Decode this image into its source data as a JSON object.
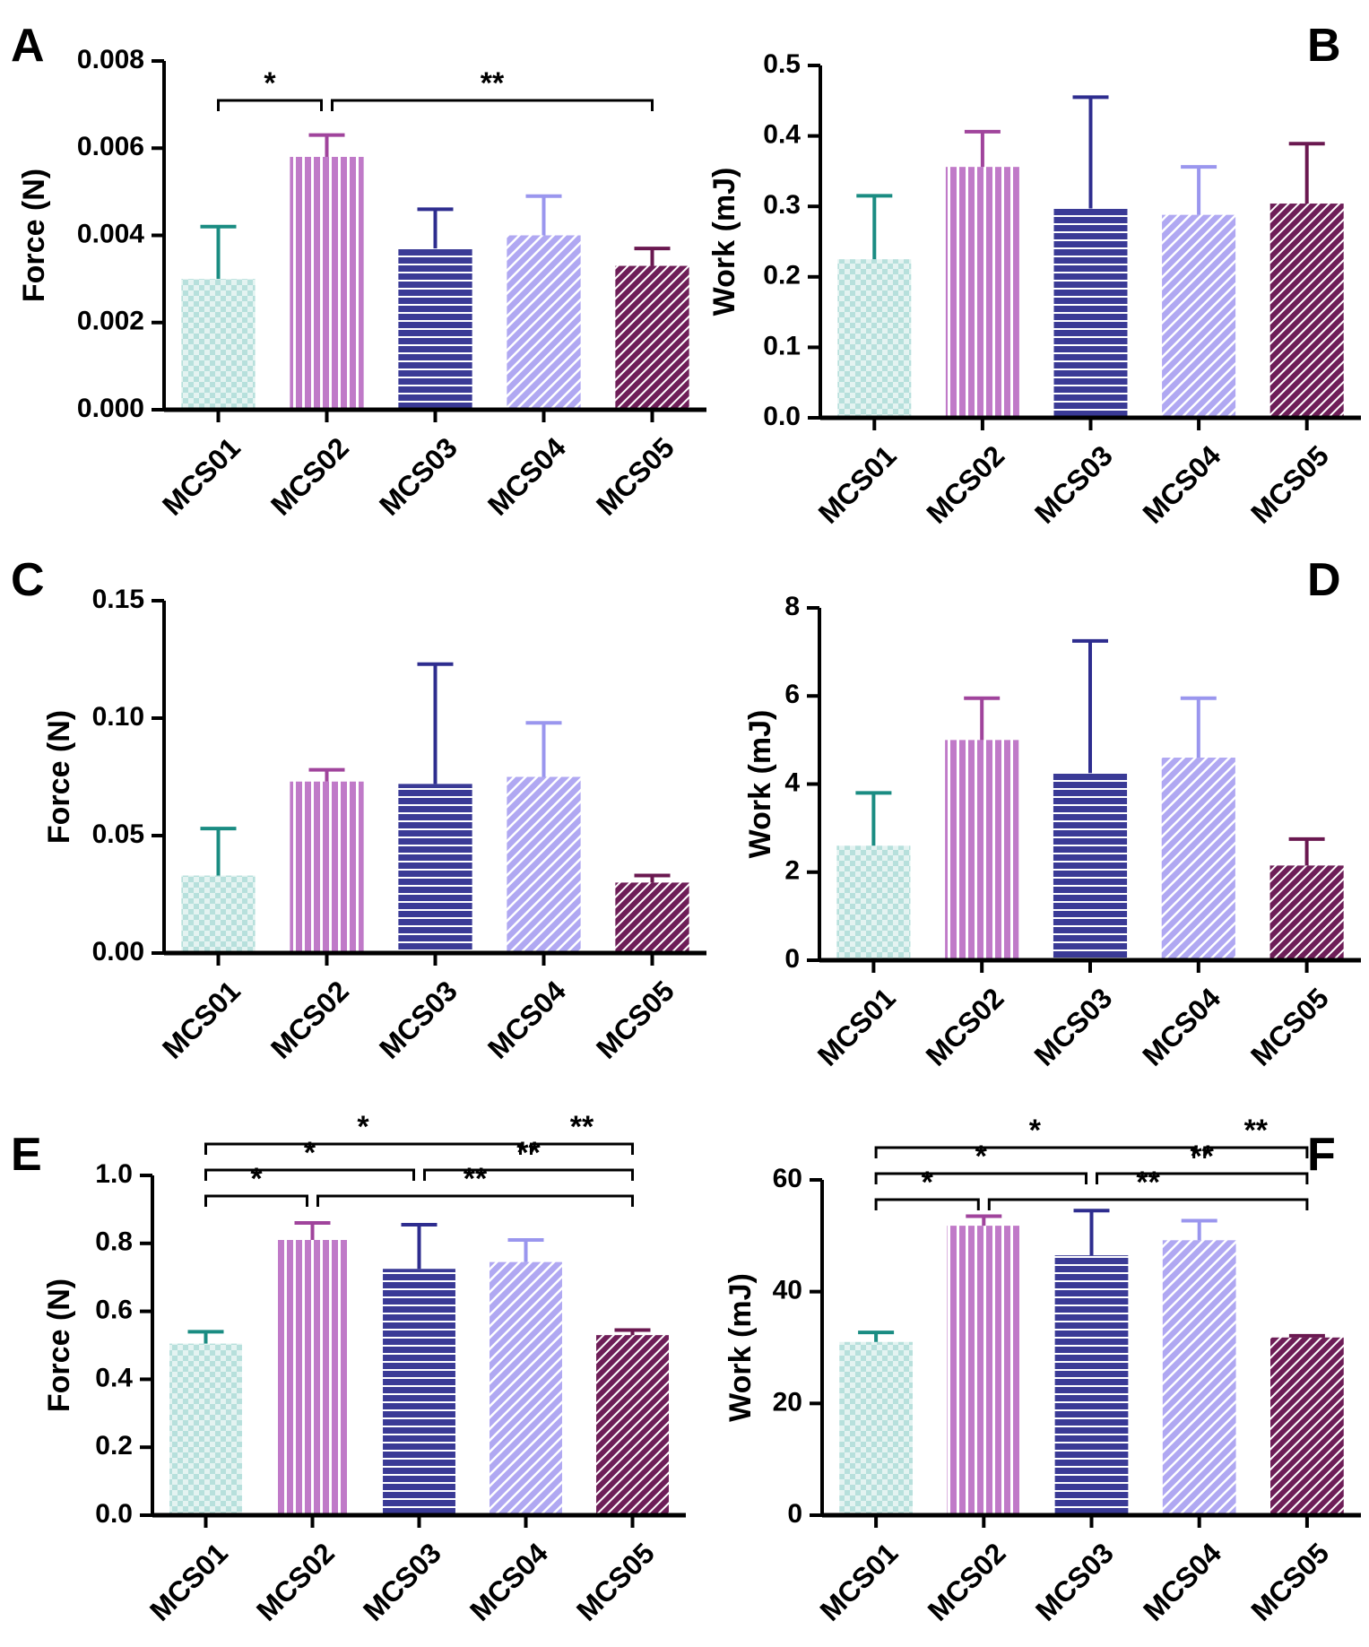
{
  "figure": {
    "categories": [
      "MCS01",
      "MCS02",
      "MCS03",
      "MCS04",
      "MCS05"
    ],
    "series_colors": [
      "#1a8c82",
      "#a0449c",
      "#2e2d8f",
      "#9a96ee",
      "#6a1850"
    ],
    "series_fills": [
      "#b7e0dc",
      "#c07ac8",
      "#3a3a96",
      "#b0a8f2",
      "#6e1e58"
    ]
  },
  "chart_data": [
    {
      "panel": "A",
      "type": "bar",
      "categories": [
        "MCS01",
        "MCS02",
        "MCS03",
        "MCS04",
        "MCS05"
      ],
      "values": [
        0.003,
        0.0058,
        0.0037,
        0.004,
        0.0033
      ],
      "errors": [
        0.0012,
        0.0005,
        0.0009,
        0.0009,
        0.0004
      ],
      "ylabel": "Force (N)",
      "ylim": [
        0,
        0.008
      ],
      "yticks": [
        0,
        0.002,
        0.004,
        0.006,
        0.008
      ],
      "yticklabels": [
        "0.000",
        "0.002",
        "0.004",
        "0.006",
        "0.008"
      ],
      "significance": [
        {
          "from": 0,
          "to": 1,
          "label": "*"
        },
        {
          "from": 1,
          "to": 4,
          "label": "**"
        }
      ]
    },
    {
      "panel": "B",
      "type": "bar",
      "categories": [
        "MCS01",
        "MCS02",
        "MCS03",
        "MCS04",
        "MCS05"
      ],
      "values": [
        0.225,
        0.356,
        0.297,
        0.288,
        0.304
      ],
      "errors": [
        0.09,
        0.05,
        0.158,
        0.068,
        0.085
      ],
      "ylabel": "Work (mJ)",
      "ylim": [
        0,
        0.5
      ],
      "yticks": [
        0,
        0.1,
        0.2,
        0.3,
        0.4,
        0.5
      ],
      "yticklabels": [
        "0.0",
        "0.1",
        "0.2",
        "0.3",
        "0.4",
        "0.5"
      ],
      "significance": []
    },
    {
      "panel": "C",
      "type": "bar",
      "categories": [
        "MCS01",
        "MCS02",
        "MCS03",
        "MCS04",
        "MCS05"
      ],
      "values": [
        0.033,
        0.073,
        0.072,
        0.075,
        0.03
      ],
      "errors": [
        0.02,
        0.005,
        0.051,
        0.023,
        0.003
      ],
      "ylabel": "Force (N)",
      "ylim": [
        0,
        0.15
      ],
      "yticks": [
        0,
        0.05,
        0.1,
        0.15
      ],
      "yticklabels": [
        "0.00",
        "0.05",
        "0.10",
        "0.15"
      ],
      "significance": []
    },
    {
      "panel": "D",
      "type": "bar",
      "categories": [
        "MCS01",
        "MCS02",
        "MCS03",
        "MCS04",
        "MCS05"
      ],
      "values": [
        2.6,
        5.0,
        4.25,
        4.6,
        2.15
      ],
      "errors": [
        1.2,
        0.95,
        3.0,
        1.35,
        0.6
      ],
      "ylabel": "Work (mJ)",
      "ylim": [
        0,
        8
      ],
      "yticks": [
        0,
        2,
        4,
        6,
        8
      ],
      "yticklabels": [
        "0",
        "2",
        "4",
        "6",
        "8"
      ],
      "significance": []
    },
    {
      "panel": "E",
      "type": "bar",
      "categories": [
        "MCS01",
        "MCS02",
        "MCS03",
        "MCS04",
        "MCS05"
      ],
      "values": [
        0.505,
        0.81,
        0.725,
        0.745,
        0.53
      ],
      "errors": [
        0.035,
        0.05,
        0.13,
        0.065,
        0.015
      ],
      "ylabel": "Force (N)",
      "ylim": [
        0,
        1.0
      ],
      "yticks": [
        0,
        0.2,
        0.4,
        0.6,
        0.8,
        1.0
      ],
      "yticklabels": [
        "0.0",
        "0.2",
        "0.4",
        "0.6",
        "0.8",
        "1.0"
      ],
      "significance": [
        {
          "from": 0,
          "to": 1,
          "label": "*"
        },
        {
          "from": 1,
          "to": 4,
          "label": "**"
        },
        {
          "from": 0,
          "to": 2,
          "label": "*"
        },
        {
          "from": 2,
          "to": 4,
          "label": "**"
        },
        {
          "from": 0,
          "to": 3,
          "label": "*"
        },
        {
          "from": 3,
          "to": 4,
          "label": "**"
        }
      ]
    },
    {
      "panel": "F",
      "type": "bar",
      "categories": [
        "MCS01",
        "MCS02",
        "MCS03",
        "MCS04",
        "MCS05"
      ],
      "values": [
        31,
        51.8,
        46.5,
        49.2,
        31.8
      ],
      "errors": [
        1.7,
        1.7,
        8.0,
        3.5,
        0.3
      ],
      "ylabel": "Work (mJ)",
      "ylim": [
        0,
        60
      ],
      "yticks": [
        0,
        20,
        40,
        60
      ],
      "yticklabels": [
        "0",
        "20",
        "40",
        "60"
      ],
      "significance": [
        {
          "from": 0,
          "to": 1,
          "label": "*"
        },
        {
          "from": 1,
          "to": 4,
          "label": "**"
        },
        {
          "from": 0,
          "to": 2,
          "label": "*"
        },
        {
          "from": 2,
          "to": 4,
          "label": "**"
        },
        {
          "from": 0,
          "to": 3,
          "label": "*"
        },
        {
          "from": 3,
          "to": 4,
          "label": "**"
        }
      ]
    }
  ]
}
